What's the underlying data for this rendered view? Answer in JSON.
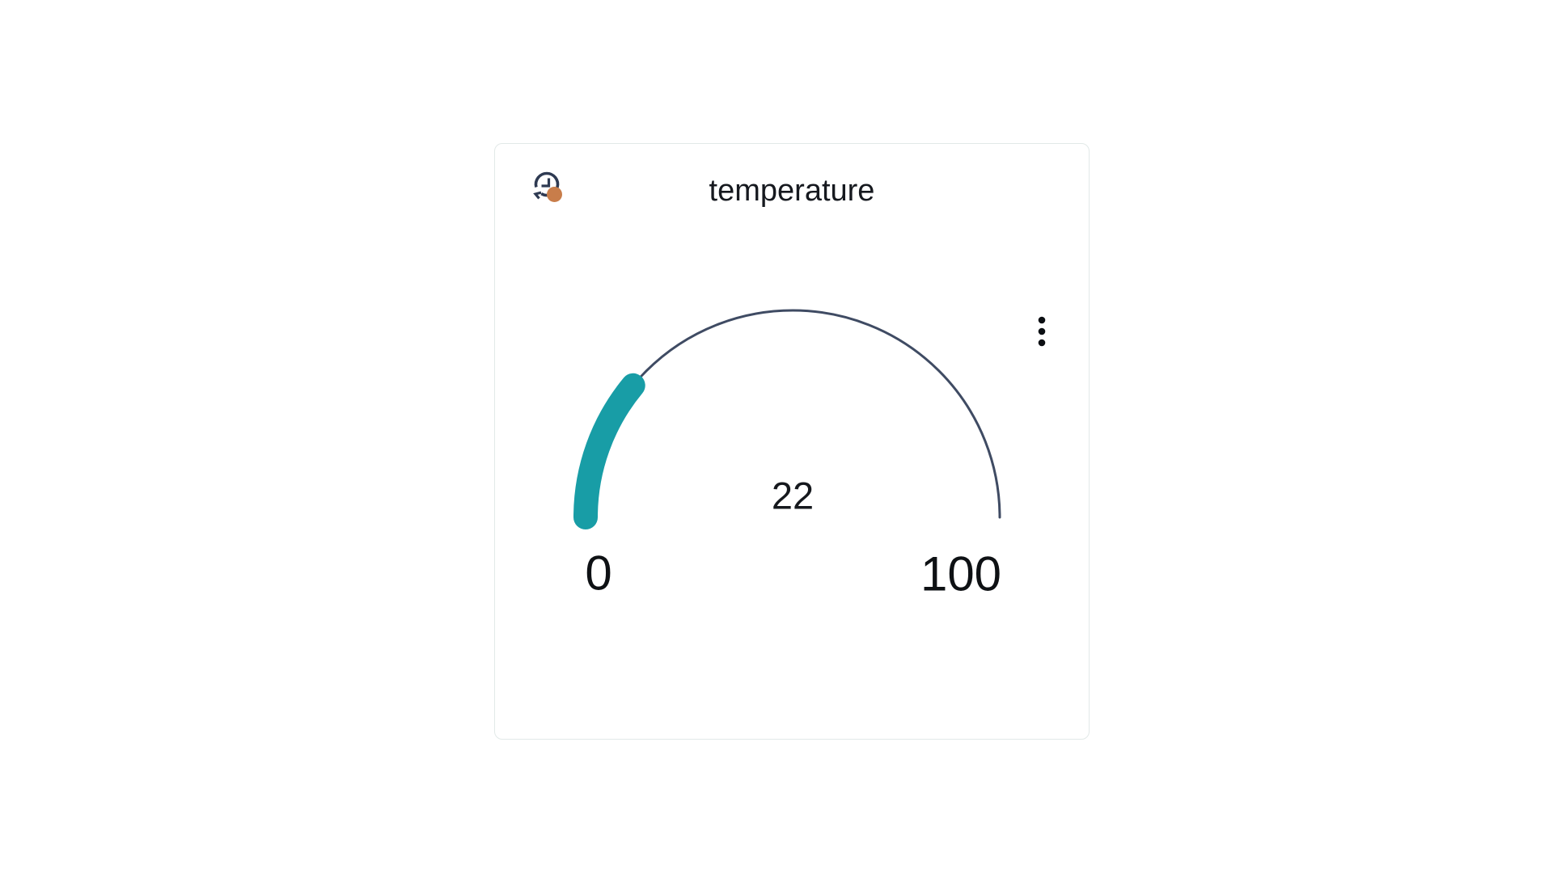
{
  "card": {
    "title": "temperature",
    "header": {
      "timewindow_icon": "history-clock-icon",
      "timewindow_badge_color": "#c87d4a",
      "menu_icon": "kebab-vertical-icon"
    },
    "border_color": "#e2e9e8",
    "background_color": "#ffffff"
  },
  "chart_data": {
    "type": "gauge",
    "title": "temperature",
    "value": 22,
    "value_label": "22",
    "min": 0,
    "max": 100,
    "min_label": "0",
    "max_label": "100",
    "start_angle_deg": 180,
    "end_angle_deg": 0,
    "progress_color": "#189da6",
    "track_color": "#3f4b63",
    "progress_width": 30,
    "track_width": 3
  },
  "colors": {
    "icon_navy": "#2e3a52",
    "badge_orange": "#c87d4a",
    "text_dark": "#15181d"
  }
}
